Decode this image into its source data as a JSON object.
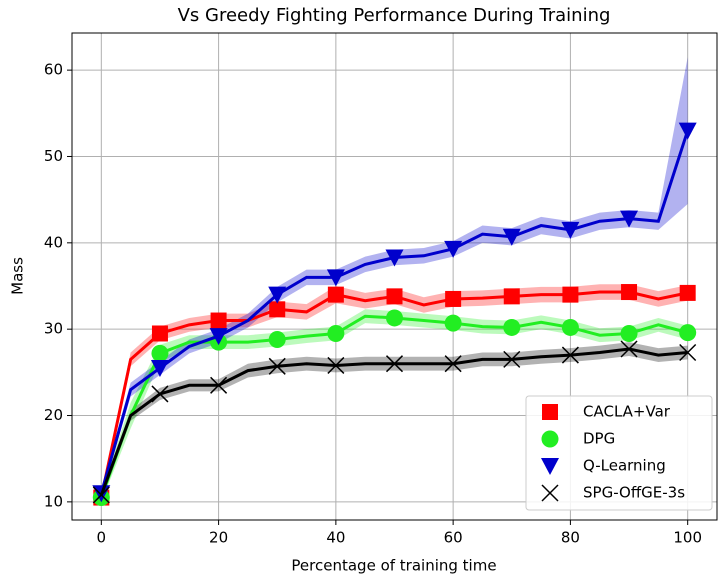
{
  "chart_data": {
    "type": "line",
    "title": "Vs Greedy Fighting Performance During Training",
    "xlabel": "Percentage of training time",
    "ylabel": "Mass",
    "x": [
      0,
      5,
      10,
      15,
      20,
      25,
      30,
      35,
      40,
      45,
      50,
      55,
      60,
      65,
      70,
      75,
      80,
      85,
      90,
      95,
      100
    ],
    "series": [
      {
        "name": "CACLA+Var",
        "color": "#ff0000",
        "marker": "square",
        "values": [
          10.5,
          26.5,
          29.5,
          30.5,
          31,
          31,
          32.3,
          32,
          34,
          33.3,
          33.8,
          32.8,
          33.5,
          33.6,
          33.8,
          34,
          34,
          34.3,
          34.3,
          33.5,
          34.2
        ],
        "errors": [
          0.5,
          0.8,
          0.8,
          0.8,
          0.8,
          0.8,
          0.9,
          0.9,
          1,
          0.9,
          0.9,
          0.9,
          0.9,
          0.9,
          0.9,
          0.9,
          0.9,
          0.9,
          0.9,
          0.9,
          0.9
        ]
      },
      {
        "name": "DPG",
        "color": "#22ee22",
        "marker": "circle",
        "values": [
          10.5,
          20,
          27.2,
          28.5,
          28.5,
          28.5,
          28.8,
          29.2,
          29.5,
          31.5,
          31.3,
          31,
          30.7,
          30.3,
          30.2,
          30.8,
          30.2,
          29.3,
          29.5,
          30.5,
          29.6
        ],
        "errors": [
          0.5,
          1.5,
          1,
          0.8,
          0.8,
          0.8,
          0.8,
          0.8,
          0.8,
          0.8,
          0.8,
          0.8,
          0.8,
          0.8,
          0.8,
          0.8,
          0.8,
          0.8,
          0.8,
          0.8,
          0.8
        ]
      },
      {
        "name": "Q-Learning",
        "color": "#0000cc",
        "marker": "triangle_down",
        "values": [
          11,
          23,
          25.5,
          28,
          29.2,
          31,
          34,
          36,
          36,
          37.5,
          38.3,
          38.5,
          39.3,
          41,
          40.7,
          42,
          41.5,
          42.5,
          42.8,
          42.5,
          53
        ],
        "errors": [
          0.5,
          0.8,
          0.8,
          0.8,
          0.8,
          0.8,
          0.9,
          0.9,
          0.9,
          0.9,
          0.9,
          0.9,
          0.9,
          1,
          1,
          1,
          1,
          1,
          1,
          1,
          8.5
        ]
      },
      {
        "name": "SPG-OffGE-3s",
        "color": "#000000",
        "marker": "x",
        "values": [
          10.8,
          20,
          22.5,
          23.5,
          23.5,
          25.2,
          25.7,
          26,
          25.8,
          26,
          26,
          26,
          26,
          26.5,
          26.5,
          26.8,
          27,
          27.3,
          27.7,
          27,
          27.3
        ],
        "errors": [
          0.5,
          0.6,
          0.7,
          0.7,
          0.7,
          0.8,
          0.8,
          0.8,
          0.8,
          0.8,
          0.8,
          0.8,
          0.8,
          0.8,
          0.8,
          0.8,
          0.8,
          0.8,
          0.8,
          0.8,
          0.8
        ]
      }
    ],
    "xlim": [
      -5,
      105
    ],
    "xticks": [
      0,
      20,
      40,
      60,
      80,
      100
    ],
    "ylim": [
      7.9,
      64.3
    ],
    "yticks": [
      10,
      20,
      30,
      40,
      50,
      60
    ],
    "grid": true,
    "legend": "lower right"
  }
}
